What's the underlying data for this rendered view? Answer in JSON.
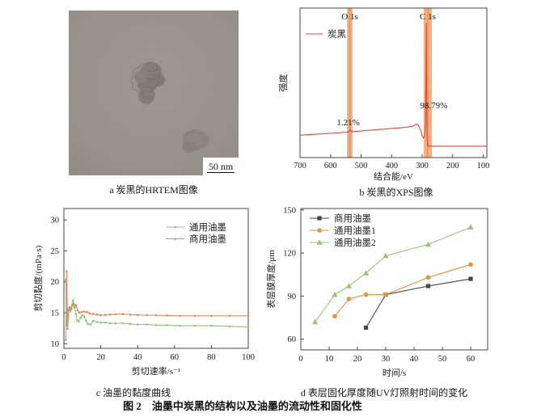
{
  "figure_caption": "图 2　油墨中炭黑的结构以及油墨的流动性和固化性",
  "panels": {
    "a": {
      "caption": "a 炭黑的HRTEM图像",
      "scale_bar": "50 nm"
    },
    "b": {
      "caption": "b 炭黑的XPS图像"
    },
    "c": {
      "caption": "c 油墨的黏度曲线"
    },
    "d": {
      "caption": "d 表层固化厚度随UV灯照射时间的变化"
    }
  },
  "chart_data": [
    {
      "id": "xps-spectrum",
      "type": "line",
      "title": "",
      "xlabel": "结合能/eV",
      "ylabel": "强度",
      "xlim": [
        700,
        88
      ],
      "ylim": [
        0,
        1
      ],
      "xticks": [
        700,
        600,
        500,
        400,
        300,
        200,
        100
      ],
      "yticks": [],
      "grid": false,
      "legend_position": "top-left",
      "bands": [
        {
          "label": "O 1s",
          "x1": 546,
          "x2": 528,
          "color": "#f2a46e",
          "stripe": "#e08c4a"
        },
        {
          "label": "C 1s",
          "x1": 295,
          "x2": 268,
          "color": "#f2a46e",
          "stripe": "#e08c4a"
        }
      ],
      "annotations": [
        {
          "text": "1.21%",
          "x": 542,
          "y": 0.215
        },
        {
          "text": "98.79%",
          "x": 262,
          "y": 0.33
        }
      ],
      "series": [
        {
          "name": "炭黑",
          "color": "#e2473f",
          "marker": "none",
          "points": [
            [
              700,
              0.15
            ],
            [
              660,
              0.155
            ],
            [
              620,
              0.16
            ],
            [
              580,
              0.165
            ],
            [
              550,
              0.17
            ],
            [
              540,
              0.172
            ],
            [
              536,
              0.186
            ],
            [
              532,
              0.176
            ],
            [
              524,
              0.174
            ],
            [
              500,
              0.178
            ],
            [
              470,
              0.183
            ],
            [
              440,
              0.188
            ],
            [
              410,
              0.193
            ],
            [
              380,
              0.198
            ],
            [
              350,
              0.204
            ],
            [
              332,
              0.21
            ],
            [
              322,
              0.222
            ],
            [
              314,
              0.221
            ],
            [
              306,
              0.19
            ],
            [
              300,
              0.148
            ],
            [
              296,
              0.13
            ],
            [
              292,
              0.145
            ],
            [
              289,
              0.22
            ],
            [
              287.5,
              0.55
            ],
            [
              286.5,
              0.9
            ],
            [
              285,
              0.45
            ],
            [
              284,
              0.15
            ],
            [
              282,
              0.078
            ],
            [
              270,
              0.076
            ],
            [
              240,
              0.076
            ],
            [
              210,
              0.076
            ],
            [
              180,
              0.076
            ],
            [
              150,
              0.076
            ],
            [
              120,
              0.076
            ],
            [
              90,
              0.076
            ]
          ]
        }
      ]
    },
    {
      "id": "viscosity-curve",
      "type": "line",
      "title": "",
      "xlabel": "剪切速率/s⁻¹",
      "ylabel": "剪切黏度/(mPa·s)",
      "xlim": [
        0,
        100
      ],
      "ylim": [
        9.25,
        31.85
      ],
      "xticks": [
        0,
        20,
        40,
        60,
        80,
        100
      ],
      "yticks": [
        10,
        15,
        20,
        25,
        30
      ],
      "grid": false,
      "legend_position": "top-right",
      "series": [
        {
          "name": "通用油墨",
          "color": "#93c17c",
          "marker": "dot",
          "points": [
            [
              1,
              20.3
            ],
            [
              1.6,
              12.9
            ],
            [
              2.2,
              15.6
            ],
            [
              3,
              15.9
            ],
            [
              3.6,
              15.2
            ],
            [
              4.4,
              16.2
            ],
            [
              5,
              17.0
            ],
            [
              5.7,
              16.3
            ],
            [
              6.5,
              14.8
            ],
            [
              7.2,
              13.8
            ],
            [
              8,
              13.6
            ],
            [
              9,
              14.2
            ],
            [
              10,
              14.6
            ],
            [
              11,
              14.4
            ],
            [
              12,
              13.7
            ],
            [
              13,
              13.2
            ],
            [
              14.5,
              13.1
            ],
            [
              16,
              13.7
            ],
            [
              18,
              13.5
            ],
            [
              20,
              13.4
            ],
            [
              22.5,
              13.4
            ],
            [
              25,
              13.3
            ],
            [
              28,
              13.3
            ],
            [
              32,
              13.3
            ],
            [
              36,
              13.2
            ],
            [
              40,
              13.1
            ],
            [
              45,
              13.1
            ],
            [
              50,
              13.0
            ],
            [
              56,
              13.0
            ],
            [
              63,
              12.9
            ],
            [
              71,
              12.9
            ],
            [
              80,
              12.9
            ],
            [
              90,
              12.8
            ],
            [
              100,
              12.7
            ]
          ]
        },
        {
          "name": "商用油墨",
          "color": "#e2885a",
          "marker": "dot",
          "points": [
            [
              1,
              10.6
            ],
            [
              1.5,
              21.7
            ],
            [
              2,
              12.4
            ],
            [
              2.6,
              15.4
            ],
            [
              3.2,
              15.9
            ],
            [
              4,
              15.6
            ],
            [
              5,
              16.4
            ],
            [
              5.8,
              15.9
            ],
            [
              6.6,
              16.2
            ],
            [
              7.4,
              15.4
            ],
            [
              8.4,
              15.0
            ],
            [
              9.5,
              15.1
            ],
            [
              11,
              15.2
            ],
            [
              12.5,
              15.1
            ],
            [
              14,
              14.9
            ],
            [
              16,
              14.8
            ],
            [
              18,
              14.7
            ],
            [
              20,
              14.6
            ],
            [
              22.5,
              14.65
            ],
            [
              25,
              14.7
            ],
            [
              28,
              14.75
            ],
            [
              32,
              14.8
            ],
            [
              36,
              14.7
            ],
            [
              40,
              14.65
            ],
            [
              45,
              14.6
            ],
            [
              50,
              14.6
            ],
            [
              56,
              14.55
            ],
            [
              63,
              14.5
            ],
            [
              71,
              14.5
            ],
            [
              80,
              14.5
            ],
            [
              90,
              14.5
            ],
            [
              100,
              14.5
            ]
          ]
        }
      ]
    },
    {
      "id": "cure-thickness",
      "type": "line-scatter",
      "title": "",
      "xlabel": "时间/s",
      "ylabel": "表层膜厚度/μm",
      "xlim": [
        0,
        66
      ],
      "ylim": [
        52.5,
        151
      ],
      "xticks": [
        0,
        10,
        20,
        30,
        40,
        50,
        60
      ],
      "yticks": [
        60,
        90,
        120,
        150
      ],
      "grid": false,
      "legend_position": "top-left",
      "series": [
        {
          "name": "商用油墨",
          "color": "#464646",
          "marker": "square",
          "points": [
            [
              23,
              68
            ],
            [
              30,
              91
            ],
            [
              45,
              97
            ],
            [
              60,
              102
            ]
          ]
        },
        {
          "name": "通用油墨1",
          "color": "#e8913f",
          "marker": "circle",
          "points": [
            [
              12,
              76
            ],
            [
              17,
              88
            ],
            [
              23,
              91
            ],
            [
              30,
              91
            ],
            [
              45,
              103
            ],
            [
              60,
              112
            ]
          ]
        },
        {
          "name": "通用油墨2",
          "color": "#94c578",
          "marker": "triangle",
          "points": [
            [
              5,
              72
            ],
            [
              12,
              91
            ],
            [
              17,
              97
            ],
            [
              23,
              106
            ],
            [
              30,
              118
            ],
            [
              45,
              126
            ],
            [
              60,
              138
            ]
          ]
        }
      ]
    }
  ]
}
